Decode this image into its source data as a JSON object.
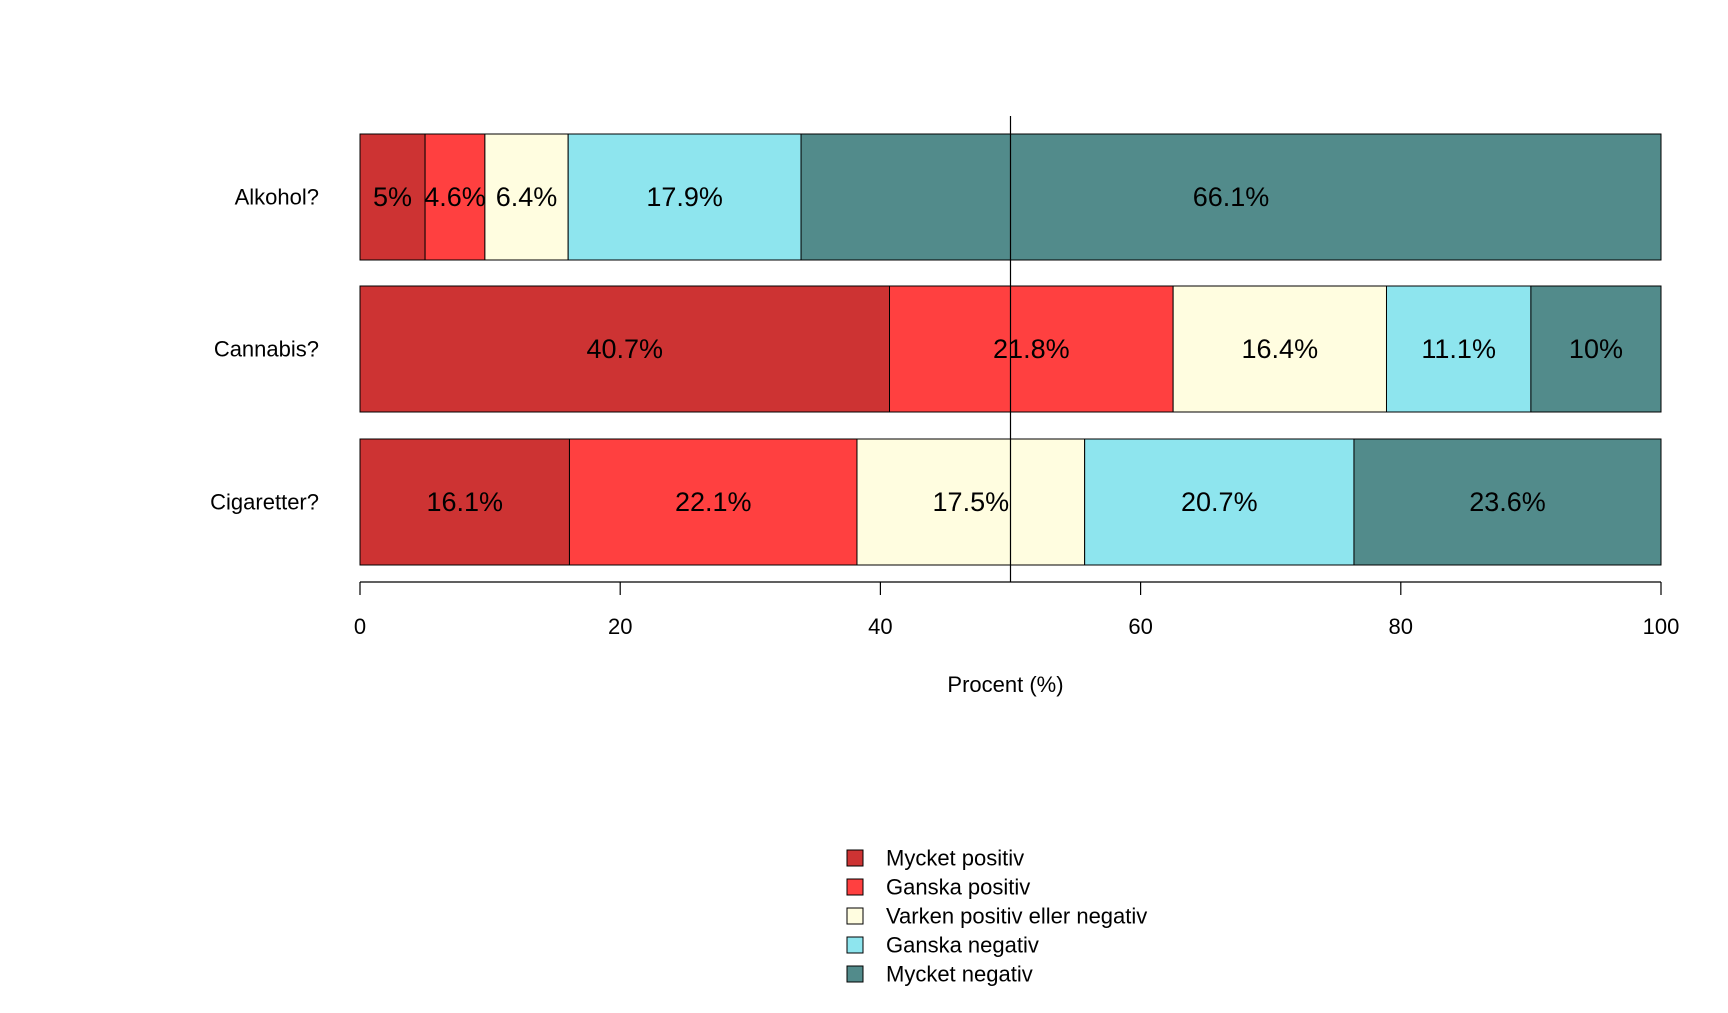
{
  "chart_data": {
    "type": "bar",
    "orientation": "horizontal",
    "stacked": true,
    "categories": [
      "Alkohol?",
      "Cannabis?",
      "Cigaretter?"
    ],
    "series": [
      {
        "name": "Mycket positiv",
        "color": "#CD3333",
        "values": [
          5,
          40.7,
          16.1
        ],
        "labels": [
          "5%",
          "40.7%",
          "16.1%"
        ]
      },
      {
        "name": "Ganska positiv",
        "color": "#FF4040",
        "values": [
          4.6,
          21.8,
          22.1
        ],
        "labels": [
          "4.6%",
          "21.8%",
          "22.1%"
        ]
      },
      {
        "name": "Varken positiv eller negativ",
        "color": "#FFFDE0",
        "values": [
          6.4,
          16.4,
          17.5
        ],
        "labels": [
          "6.4%",
          "16.4%",
          "17.5%"
        ]
      },
      {
        "name": "Ganska negativ",
        "color": "#8EE5EE",
        "values": [
          17.9,
          11.1,
          20.7
        ],
        "labels": [
          "17.9%",
          "11.1%",
          "20.7%"
        ]
      },
      {
        "name": "Mycket negativ",
        "color": "#528B8B",
        "values": [
          66.1,
          10,
          23.6
        ],
        "labels": [
          "66.1%",
          "10%",
          "23.6%"
        ]
      }
    ],
    "xlabel": "Procent (%)",
    "xlim": [
      0,
      100
    ],
    "xticks": [
      0,
      20,
      40,
      60,
      80,
      100
    ],
    "xtick_labels": [
      "0",
      "20",
      "40",
      "60",
      "80",
      "100"
    ],
    "reference_line_x": 50,
    "grid": false,
    "legend_position": "bottom-center"
  }
}
